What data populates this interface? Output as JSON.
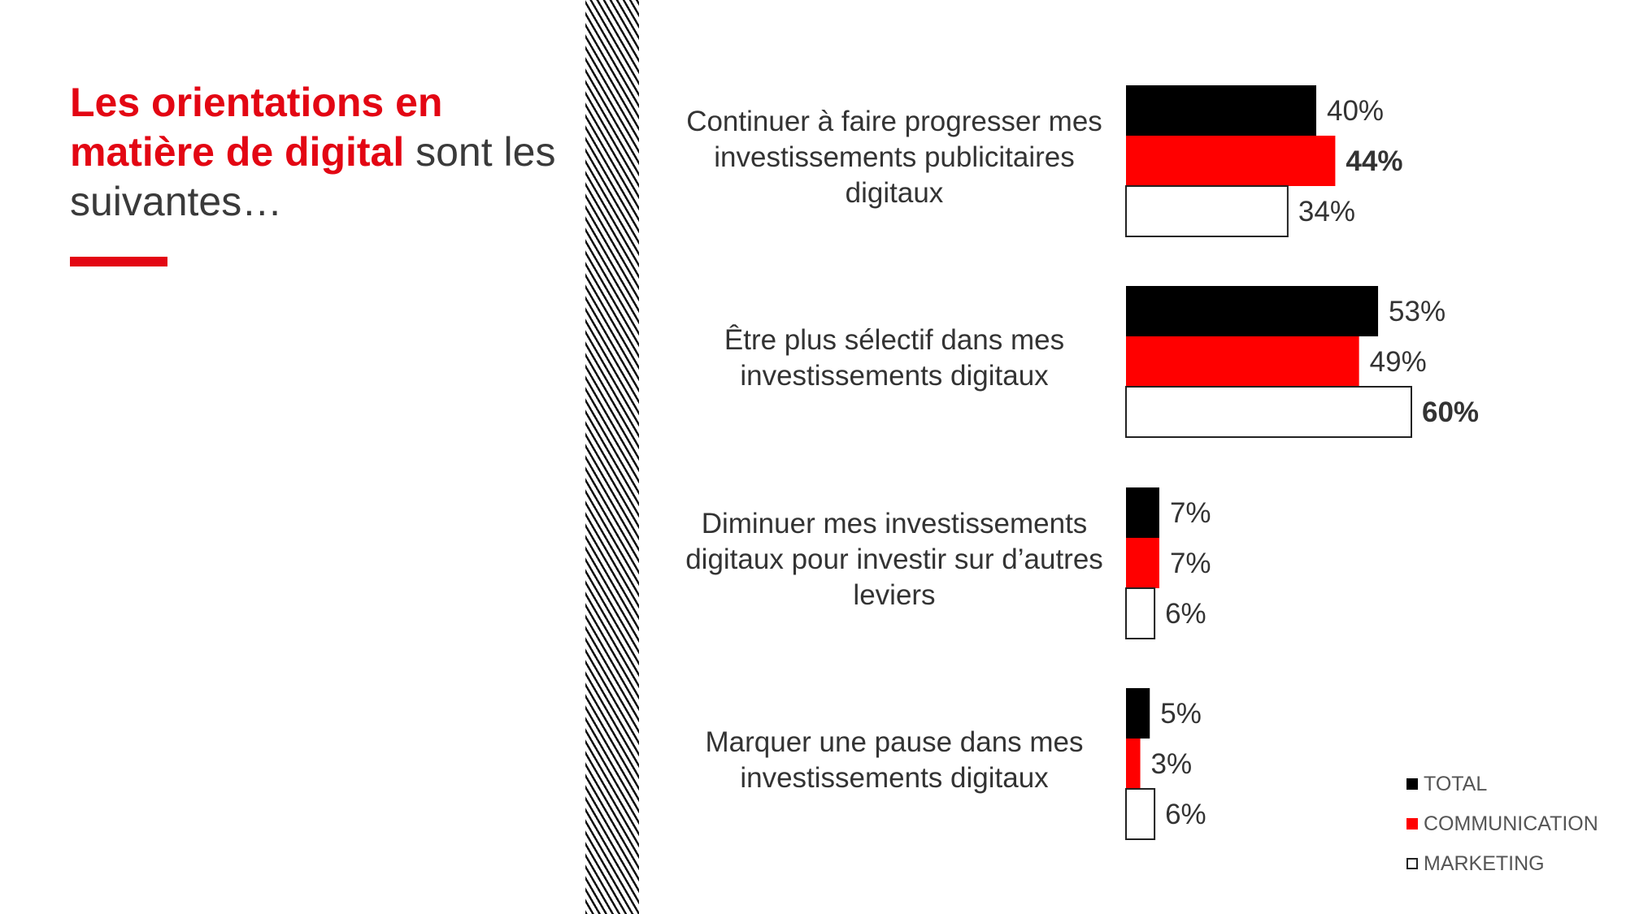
{
  "title": {
    "highlight": "Les orientations en matière de digital",
    "rest": " sont les suivantes…"
  },
  "colors": {
    "accent": "#e30613",
    "total": "#000000",
    "communication": "#ff0000",
    "marketing": "#ffffff",
    "outline": "#222222"
  },
  "chart_data": {
    "type": "bar",
    "orientation": "horizontal",
    "categories": [
      "Continuer à faire progresser mes investissements publicitaires digitaux",
      "Être plus sélectif dans mes investissements digitaux",
      "Diminuer mes investissements digitaux pour investir sur d’autres leviers",
      "Marquer une pause dans mes investissements digitaux"
    ],
    "series": [
      {
        "name": "TOTAL",
        "color": "#000000",
        "values": [
          40,
          53,
          7,
          5
        ]
      },
      {
        "name": "COMMUNICATION",
        "color": "#ff0000",
        "values": [
          44,
          49,
          7,
          3
        ]
      },
      {
        "name": "MARKETING",
        "color": "#ffffff",
        "values": [
          34,
          60,
          6,
          6
        ]
      }
    ],
    "value_labels": [
      [
        "40%",
        "44%",
        "34%"
      ],
      [
        "53%",
        "49%",
        "60%"
      ],
      [
        "7%",
        "7%",
        "6%"
      ],
      [
        "5%",
        "3%",
        "6%"
      ]
    ],
    "bold_labels": [
      [
        false,
        true,
        false
      ],
      [
        false,
        false,
        true
      ],
      [
        false,
        false,
        false
      ],
      [
        false,
        false,
        false
      ]
    ],
    "legend": {
      "position": "bottom-right"
    }
  }
}
